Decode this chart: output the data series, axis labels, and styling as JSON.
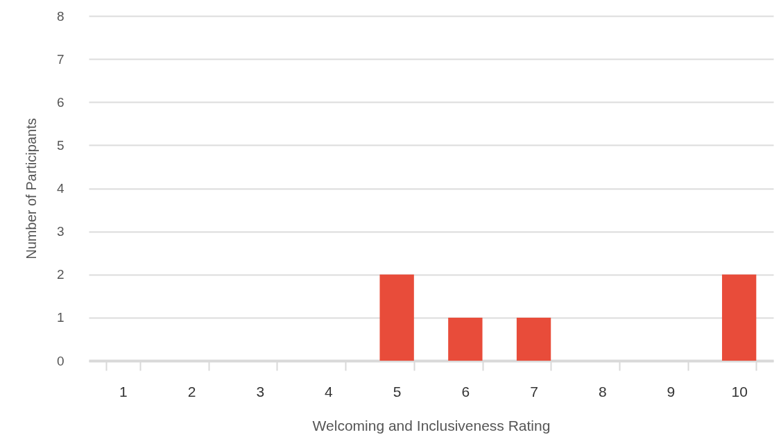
{
  "chart_data": {
    "type": "bar",
    "xlabel": "Welcoming and Inclusiveness Rating",
    "ylabel": "Number of Participants",
    "categories": [
      "1",
      "2",
      "3",
      "4",
      "5",
      "6",
      "7",
      "8",
      "9",
      "10"
    ],
    "values": [
      0,
      0,
      0,
      0,
      2,
      1,
      1,
      0,
      0,
      2
    ],
    "color": "#e84c3a",
    "ylim": [
      0,
      8
    ],
    "yticks": [
      0,
      1,
      2,
      3,
      4,
      5,
      6,
      7,
      8
    ],
    "grid": "y"
  }
}
